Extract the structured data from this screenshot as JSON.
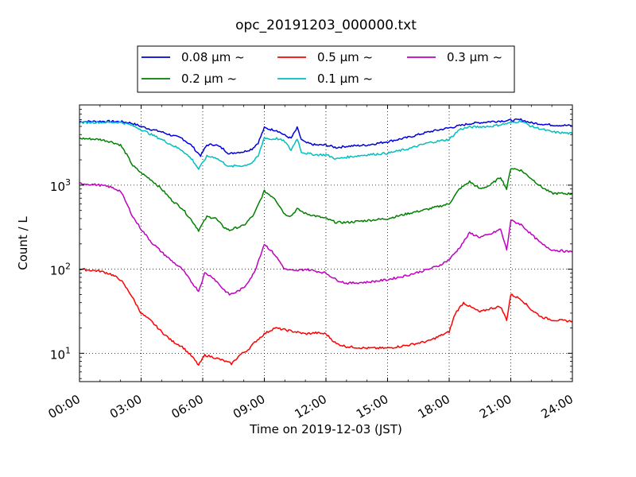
{
  "chart_data": {
    "type": "line",
    "title": "opc_20191203_000000.txt",
    "xlabel": "Time on 2019-12-03 (JST)",
    "ylabel": "Count / L",
    "x_unit": "hours",
    "xlim": [
      0,
      24
    ],
    "ylim": [
      4.6,
      9000
    ],
    "y_scale": "log",
    "grid": true,
    "legend_position": "top-center",
    "x_ticks": [
      {
        "value": 0,
        "label": "00:00"
      },
      {
        "value": 3,
        "label": "03:00"
      },
      {
        "value": 6,
        "label": "06:00"
      },
      {
        "value": 9,
        "label": "09:00"
      },
      {
        "value": 12,
        "label": "12:00"
      },
      {
        "value": 15,
        "label": "15:00"
      },
      {
        "value": 18,
        "label": "18:00"
      },
      {
        "value": 21,
        "label": "21:00"
      },
      {
        "value": 24,
        "label": "24:00"
      }
    ],
    "y_ticks": [
      {
        "value": 10,
        "base": "10",
        "exp": "1"
      },
      {
        "value": 100,
        "base": "10",
        "exp": "2"
      },
      {
        "value": 1000,
        "base": "10",
        "exp": "3"
      }
    ],
    "series": [
      {
        "name": "0.08 µm ~",
        "color": "#0000dd",
        "x": [
          0,
          1,
          2,
          2.5,
          3,
          3.5,
          4,
          4.5,
          5,
          5.5,
          5.7,
          5.9,
          6.2,
          6.6,
          7,
          7.3,
          7.6,
          8,
          8.4,
          8.7,
          9,
          9.3,
          9.6,
          10,
          10.3,
          10.6,
          10.8,
          11,
          11.5,
          12,
          12.5,
          13,
          14,
          15,
          16,
          17,
          18,
          19,
          20,
          21,
          21.5,
          22,
          23,
          24
        ],
        "y": [
          5700,
          5750,
          5700,
          5500,
          5000,
          4600,
          4300,
          3900,
          3600,
          2900,
          2500,
          2250,
          3000,
          3050,
          2700,
          2350,
          2450,
          2500,
          2700,
          3200,
          4800,
          4600,
          4500,
          3900,
          3600,
          4800,
          3500,
          3200,
          3000,
          3000,
          2800,
          2900,
          3000,
          3300,
          3700,
          4300,
          4800,
          5400,
          5700,
          5900,
          6000,
          5500,
          5200,
          5100
        ]
      },
      {
        "name": "0.2 µm ~",
        "color": "#008000",
        "x": [
          0,
          1,
          1.5,
          2,
          2.3,
          2.6,
          3,
          3.5,
          4,
          4.5,
          5,
          5.5,
          5.8,
          6.2,
          6.6,
          7,
          7.3,
          7.6,
          8,
          8.5,
          9,
          9.5,
          10,
          10.3,
          10.6,
          11,
          11.5,
          12,
          12.5,
          13,
          14,
          15,
          16,
          17,
          18,
          18.5,
          19,
          19.5,
          20,
          20.5,
          20.8,
          21,
          21.5,
          22,
          22.5,
          23,
          24
        ],
        "y": [
          3600,
          3500,
          3300,
          3000,
          2300,
          1700,
          1400,
          1150,
          900,
          660,
          530,
          370,
          290,
          420,
          410,
          320,
          290,
          310,
          330,
          450,
          850,
          700,
          450,
          430,
          520,
          460,
          430,
          400,
          360,
          360,
          380,
          400,
          460,
          520,
          600,
          900,
          1100,
          900,
          1000,
          1250,
          900,
          1600,
          1500,
          1200,
          950,
          800,
          790
        ]
      },
      {
        "name": "0.5 µm ~",
        "color": "#ff0000",
        "x": [
          0,
          1,
          1.5,
          2,
          2.5,
          3,
          3.5,
          4,
          4.5,
          5,
          5.5,
          5.8,
          6.1,
          6.5,
          7,
          7.4,
          7.8,
          8.2,
          8.6,
          9,
          9.5,
          10,
          10.5,
          11,
          11.5,
          12,
          12.5,
          13,
          14,
          15,
          16,
          17,
          18,
          18.3,
          18.7,
          19,
          19.5,
          20,
          20.5,
          20.8,
          21,
          21.5,
          22,
          22.5,
          23,
          24
        ],
        "y": [
          100,
          95,
          88,
          75,
          50,
          30,
          24,
          18,
          14,
          12,
          9,
          7.2,
          9.5,
          9,
          8.2,
          7.5,
          9.5,
          11,
          14,
          17,
          20,
          19,
          18,
          17,
          17.5,
          17,
          13,
          12,
          11.5,
          11.5,
          12.5,
          14,
          18,
          30,
          40,
          36,
          31,
          34,
          36,
          25,
          50,
          44,
          33,
          27,
          25,
          24
        ]
      },
      {
        "name": "0.1 µm ~",
        "color": "#00bfbf",
        "x": [
          0,
          1,
          2,
          2.5,
          3,
          3.5,
          4,
          4.5,
          5,
          5.5,
          5.8,
          6.2,
          6.6,
          7,
          7.3,
          7.6,
          8,
          8.4,
          8.7,
          9,
          9.3,
          9.6,
          10,
          10.3,
          10.6,
          10.8,
          11,
          11.5,
          12,
          12.5,
          13,
          14,
          15,
          16,
          17,
          18,
          18.5,
          19,
          20,
          21,
          21.5,
          22,
          23,
          24
        ],
        "y": [
          5550,
          5600,
          5600,
          5200,
          4600,
          4000,
          3500,
          3000,
          2600,
          2000,
          1550,
          2200,
          2150,
          1850,
          1650,
          1700,
          1700,
          1850,
          2200,
          3700,
          3500,
          3600,
          3300,
          2600,
          3600,
          2500,
          2400,
          2300,
          2300,
          2050,
          2150,
          2300,
          2400,
          2700,
          3200,
          3500,
          4600,
          4900,
          5000,
          5500,
          5800,
          5000,
          4300,
          4100
        ]
      },
      {
        "name": "0.3 µm ~",
        "color": "#bf00bf",
        "x": [
          0,
          1,
          1.5,
          2,
          2.3,
          2.6,
          3,
          3.5,
          4,
          4.5,
          5,
          5.5,
          5.8,
          6.1,
          6.5,
          7,
          7.3,
          7.6,
          8,
          8.5,
          9,
          9.5,
          10,
          10.5,
          11,
          11.5,
          12,
          12.5,
          13,
          14,
          15,
          16,
          17,
          17.5,
          18,
          18.5,
          19,
          19.5,
          20,
          20.5,
          20.8,
          21,
          21.5,
          22,
          22.5,
          23,
          24
        ],
        "y": [
          1050,
          1000,
          950,
          850,
          600,
          420,
          300,
          210,
          160,
          125,
          100,
          68,
          55,
          90,
          80,
          58,
          50,
          53,
          60,
          90,
          200,
          150,
          100,
          95,
          100,
          95,
          90,
          75,
          68,
          70,
          75,
          85,
          100,
          110,
          130,
          180,
          270,
          240,
          260,
          300,
          170,
          380,
          340,
          260,
          200,
          170,
          160
        ]
      }
    ]
  }
}
